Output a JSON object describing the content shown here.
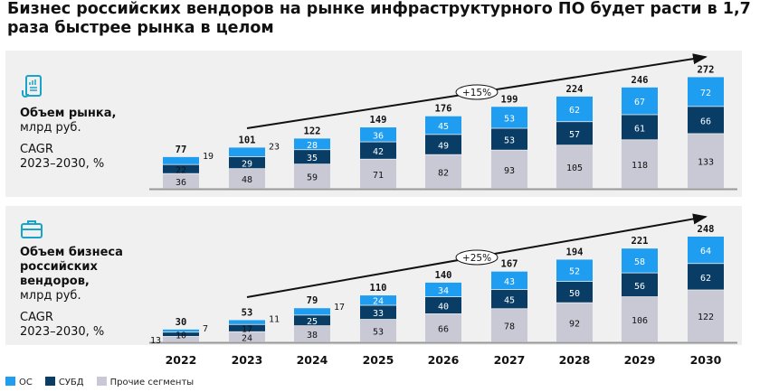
{
  "title": "Бизнес российских вендоров на рынке инфраструктурного ПО будет расти в 1,7 раза быстрее рынка в целом",
  "colors": {
    "os": "#1f9df0",
    "dbms": "#0a3d66",
    "other": "#c9c9d6",
    "panel": "#f0f0f0"
  },
  "panels": [
    {
      "icon": "document-chart-icon",
      "title": "Объем рынка,",
      "unit": "млрд руб.",
      "cagr_label": "CAGR",
      "cagr_period": "2023–2030, %"
    },
    {
      "icon": "briefcase-icon",
      "title": "Объем бизнеса российских вендоров,",
      "unit": "млрд руб.",
      "cagr_label": "CAGR",
      "cagr_period": "2023–2030, %"
    }
  ],
  "legend": [
    "ОС",
    "СУБД",
    "Прочие сегменты"
  ],
  "chart_data": [
    {
      "type": "bar",
      "stacked": true,
      "categories": [
        "2022",
        "2023",
        "2024",
        "2025",
        "2026",
        "2027",
        "2028",
        "2029",
        "2030"
      ],
      "series": [
        {
          "name": "Прочие сегменты",
          "values": [
            36,
            48,
            59,
            71,
            82,
            93,
            105,
            118,
            133
          ]
        },
        {
          "name": "СУБД",
          "values": [
            22,
            29,
            35,
            42,
            49,
            53,
            57,
            61,
            66
          ]
        },
        {
          "name": "ОС",
          "values": [
            19,
            23,
            28,
            36,
            45,
            53,
            62,
            67,
            72
          ]
        }
      ],
      "totals": [
        77,
        101,
        122,
        149,
        176,
        199,
        224,
        246,
        272
      ],
      "cagr": "+15%"
    },
    {
      "type": "bar",
      "stacked": true,
      "categories": [
        "2022",
        "2023",
        "2024",
        "2025",
        "2026",
        "2027",
        "2028",
        "2029",
        "2030"
      ],
      "series": [
        {
          "name": "Прочие сегменты",
          "values": [
            13,
            24,
            38,
            53,
            66,
            78,
            92,
            106,
            122
          ]
        },
        {
          "name": "СУБД",
          "values": [
            10,
            17,
            25,
            33,
            40,
            45,
            50,
            56,
            62
          ]
        },
        {
          "name": "ОС",
          "values": [
            7,
            11,
            17,
            24,
            34,
            43,
            52,
            58,
            64
          ]
        }
      ],
      "totals": [
        30,
        53,
        79,
        110,
        140,
        167,
        194,
        221,
        248
      ],
      "cagr": "+25%"
    }
  ]
}
